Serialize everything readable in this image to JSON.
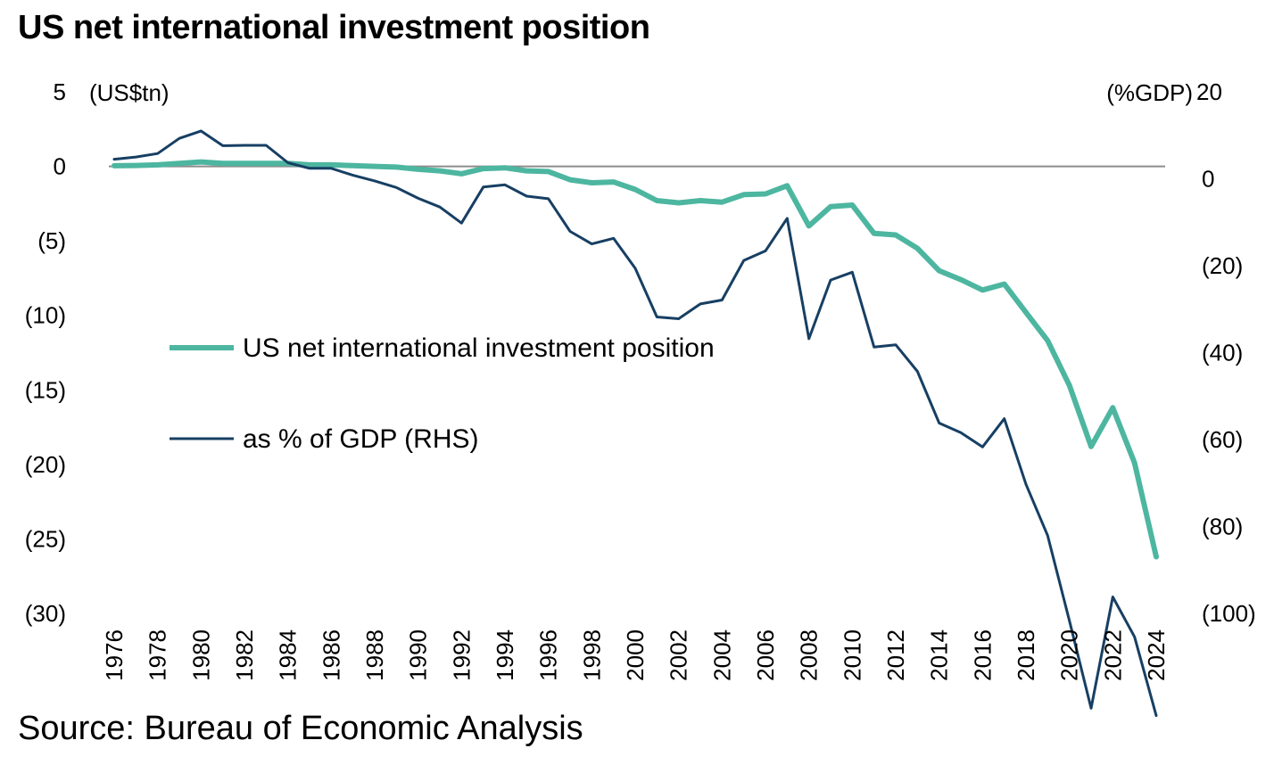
{
  "title": "US net international investment position",
  "source": "Source: Bureau of Economic Analysis",
  "colors": {
    "niip": "#4db6a0",
    "pct_gdp": "#173f63",
    "zero_line": "#8c8c8c"
  },
  "chart_data": {
    "type": "line",
    "x": [
      1976,
      1977,
      1978,
      1979,
      1980,
      1981,
      1982,
      1983,
      1984,
      1985,
      1986,
      1987,
      1988,
      1989,
      1990,
      1991,
      1992,
      1993,
      1994,
      1995,
      1996,
      1997,
      1998,
      1999,
      2000,
      2001,
      2002,
      2003,
      2004,
      2005,
      2006,
      2007,
      2008,
      2009,
      2010,
      2011,
      2012,
      2013,
      2014,
      2015,
      2016,
      2017,
      2018,
      2019,
      2020,
      2021,
      2022,
      2023,
      2024
    ],
    "x_tick_labels": [
      "1976",
      "1978",
      "1980",
      "1982",
      "1984",
      "1986",
      "1988",
      "1990",
      "1992",
      "1994",
      "1996",
      "1998",
      "2000",
      "2002",
      "2004",
      "2006",
      "2008",
      "2010",
      "2012",
      "2014",
      "2016",
      "2018",
      "2020",
      "2022",
      "2024"
    ],
    "left_axis": {
      "unit_label": "(US$tn)",
      "ylim": [
        -30,
        5
      ],
      "ticks": [
        5,
        0,
        -5,
        -10,
        -15,
        -20,
        -25,
        -30
      ],
      "tick_labels": [
        "5",
        "0",
        "(5)",
        "(10)",
        "(15)",
        "(20)",
        "(25)",
        "(30)"
      ]
    },
    "right_axis": {
      "unit_label": "(%GDP)",
      "ylim": [
        -100,
        20
      ],
      "ticks": [
        20,
        0,
        -20,
        -40,
        -60,
        -80,
        -100
      ],
      "tick_labels": [
        "20",
        "0",
        "(20)",
        "(40)",
        "(60)",
        "(80)",
        "(100)"
      ]
    },
    "series": [
      {
        "name": "US net international investment position",
        "axis": "left",
        "values": [
          0.04,
          0.06,
          0.1,
          0.2,
          0.3,
          0.2,
          0.2,
          0.2,
          0.2,
          0.1,
          0.1,
          0.05,
          0.0,
          -0.05,
          -0.2,
          -0.3,
          -0.5,
          -0.15,
          -0.1,
          -0.3,
          -0.35,
          -0.9,
          -1.1,
          -1.05,
          -1.55,
          -2.3,
          -2.45,
          -2.3,
          -2.4,
          -1.9,
          -1.85,
          -1.3,
          -4.0,
          -2.7,
          -2.6,
          -4.5,
          -4.6,
          -5.5,
          -7.0,
          -7.6,
          -8.3,
          -7.9,
          -9.8,
          -11.7,
          -14.7,
          -18.8,
          -16.2,
          -19.9,
          -26.2
        ]
      },
      {
        "name": "as % of GDP (RHS)",
        "axis": "right",
        "values": [
          4.5,
          5.0,
          5.8,
          9.3,
          11.0,
          7.6,
          7.7,
          7.7,
          3.7,
          2.4,
          2.4,
          0.8,
          -0.5,
          -2.0,
          -4.5,
          -6.5,
          -10.2,
          -1.9,
          -1.4,
          -4.0,
          -4.6,
          -12.1,
          -15.0,
          -13.7,
          -20.6,
          -31.8,
          -32.2,
          -28.8,
          -27.9,
          -18.8,
          -16.6,
          -9.1,
          -36.8,
          -23.3,
          -21.5,
          -38.7,
          -38.2,
          -44.3,
          -56.2,
          -58.4,
          -61.7,
          -55.2,
          -70.3,
          -82.1,
          -101.7,
          -121.8,
          -96.2,
          -105.4,
          -123.5
        ]
      }
    ]
  }
}
